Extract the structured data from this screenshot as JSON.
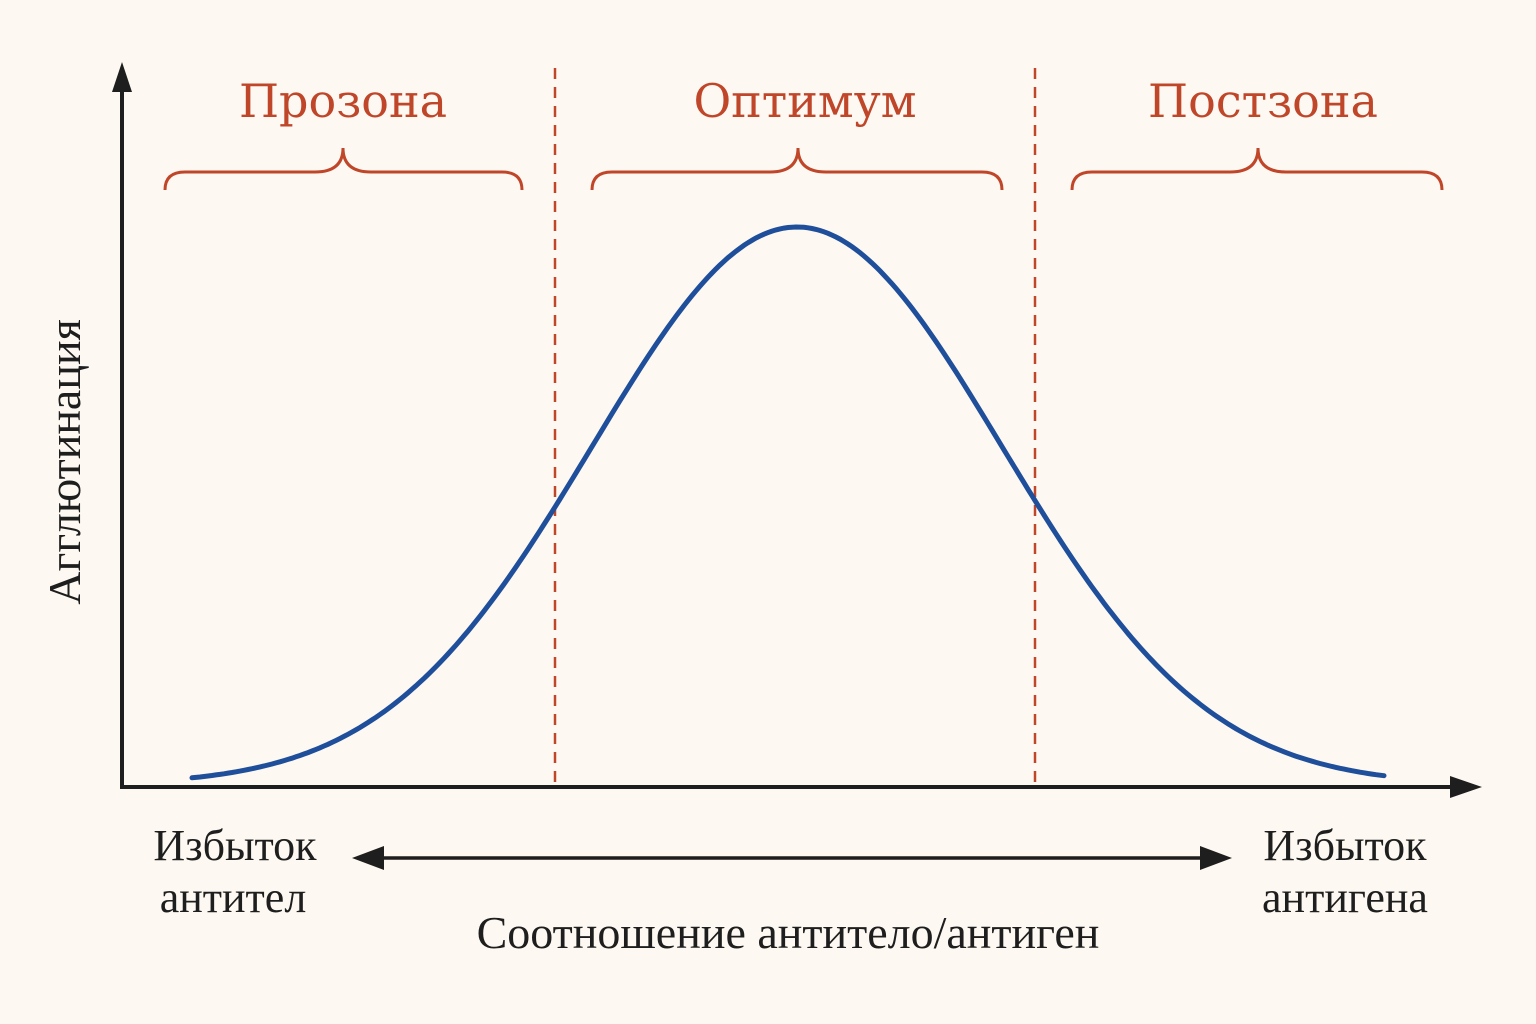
{
  "diagram": {
    "zones": [
      {
        "label": "Прозона"
      },
      {
        "label": "Оптимум"
      },
      {
        "label": "Постзона"
      }
    ],
    "y_axis_label": "Агглютинация",
    "x_axis_label": "Соотношение антитело/антиген",
    "left_end": {
      "line1": "Избыток",
      "line2": "антител"
    },
    "right_end": {
      "line1": "Избыток",
      "line2": "антигена"
    },
    "colors": {
      "background": "#fdf9f2",
      "curve": "#1f4e9a",
      "zone_accent": "#c0462a",
      "axis": "#1e1e1e"
    }
  }
}
